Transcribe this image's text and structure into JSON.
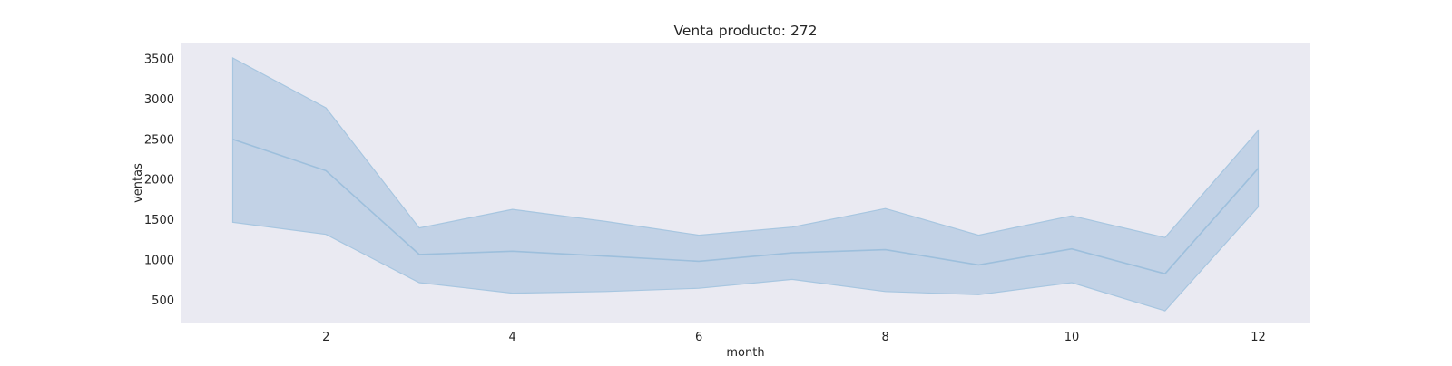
{
  "chart_data": {
    "type": "line",
    "title": "Venta producto: 272",
    "xlabel": "month",
    "ylabel": "ventas",
    "x": [
      1,
      2,
      3,
      4,
      5,
      6,
      7,
      8,
      9,
      10,
      11,
      12
    ],
    "series": [
      {
        "values": [
          2500,
          2110,
          1070,
          1110,
          1050,
          985,
          1090,
          1130,
          940,
          1140,
          830,
          2140
        ],
        "ci_upper": [
          3510,
          2890,
          1400,
          1630,
          1480,
          1310,
          1410,
          1640,
          1310,
          1550,
          1280,
          2610
        ],
        "ci_lower": [
          1470,
          1320,
          720,
          590,
          610,
          650,
          760,
          610,
          570,
          720,
          370,
          1660
        ]
      }
    ],
    "xticks": [
      2,
      4,
      6,
      8,
      10,
      12
    ],
    "yticks": [
      500,
      1000,
      1500,
      2000,
      2500,
      3000,
      3500
    ],
    "xlim": [
      0.45,
      12.55
    ],
    "ylim": [
      225,
      3690
    ],
    "grid": false,
    "legend": "none",
    "colors": {
      "plot_background": "#eaeaf2",
      "line": "#9dbfdc",
      "band": "#a9c4de",
      "band_edge": "#a7c6e0",
      "text": "#262626"
    }
  }
}
